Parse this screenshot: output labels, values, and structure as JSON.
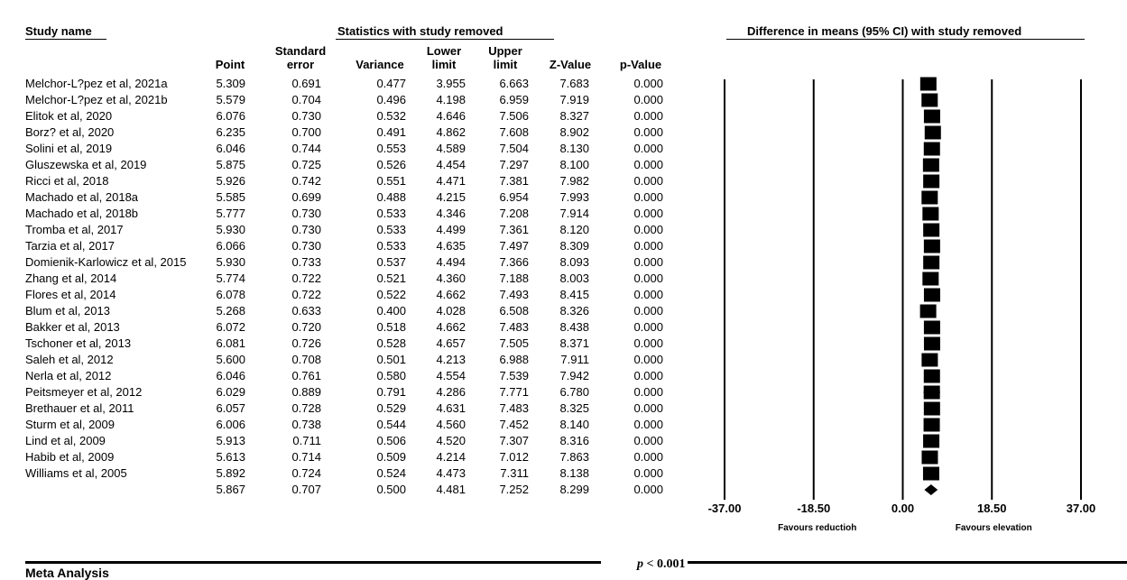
{
  "headers": {
    "study_name": "Study name",
    "stats_group": "Statistics with study removed",
    "plot_group": "Difference in means (95% CI) with study removed",
    "columns": [
      {
        "key": "point",
        "lines": [
          "",
          "Point"
        ]
      },
      {
        "key": "se",
        "lines": [
          "Standard",
          "error"
        ]
      },
      {
        "key": "variance",
        "lines": [
          "",
          "Variance"
        ]
      },
      {
        "key": "lower",
        "lines": [
          "Lower",
          "limit"
        ]
      },
      {
        "key": "upper",
        "lines": [
          "Upper",
          "limit"
        ]
      },
      {
        "key": "z",
        "lines": [
          "",
          "Z-Value"
        ]
      },
      {
        "key": "p",
        "lines": [
          "",
          "p-Value"
        ]
      }
    ]
  },
  "rows": [
    {
      "study": "Melchor-L?pez et al, 2021a",
      "point": "5.309",
      "se": "0.691",
      "variance": "0.477",
      "lower": "3.955",
      "upper": "6.663",
      "z": "7.683",
      "p": "0.000"
    },
    {
      "study": "Melchor-L?pez et al, 2021b",
      "point": "5.579",
      "se": "0.704",
      "variance": "0.496",
      "lower": "4.198",
      "upper": "6.959",
      "z": "7.919",
      "p": "0.000"
    },
    {
      "study": "Elitok et al, 2020",
      "point": "6.076",
      "se": "0.730",
      "variance": "0.532",
      "lower": "4.646",
      "upper": "7.506",
      "z": "8.327",
      "p": "0.000"
    },
    {
      "study": "Borz? et al, 2020",
      "point": "6.235",
      "se": "0.700",
      "variance": "0.491",
      "lower": "4.862",
      "upper": "7.608",
      "z": "8.902",
      "p": "0.000"
    },
    {
      "study": "Solini et al, 2019",
      "point": "6.046",
      "se": "0.744",
      "variance": "0.553",
      "lower": "4.589",
      "upper": "7.504",
      "z": "8.130",
      "p": "0.000"
    },
    {
      "study": "Gluszewska et al, 2019",
      "point": "5.875",
      "se": "0.725",
      "variance": "0.526",
      "lower": "4.454",
      "upper": "7.297",
      "z": "8.100",
      "p": "0.000"
    },
    {
      "study": "Ricci et al, 2018",
      "point": "5.926",
      "se": "0.742",
      "variance": "0.551",
      "lower": "4.471",
      "upper": "7.381",
      "z": "7.982",
      "p": "0.000"
    },
    {
      "study": "Machado et al, 2018a",
      "point": "5.585",
      "se": "0.699",
      "variance": "0.488",
      "lower": "4.215",
      "upper": "6.954",
      "z": "7.993",
      "p": "0.000"
    },
    {
      "study": "Machado et al, 2018b",
      "point": "5.777",
      "se": "0.730",
      "variance": "0.533",
      "lower": "4.346",
      "upper": "7.208",
      "z": "7.914",
      "p": "0.000"
    },
    {
      "study": "Tromba et al, 2017",
      "point": "5.930",
      "se": "0.730",
      "variance": "0.533",
      "lower": "4.499",
      "upper": "7.361",
      "z": "8.120",
      "p": "0.000"
    },
    {
      "study": "Tarzia et al, 2017",
      "point": "6.066",
      "se": "0.730",
      "variance": "0.533",
      "lower": "4.635",
      "upper": "7.497",
      "z": "8.309",
      "p": "0.000"
    },
    {
      "study": "Domienik-Karlowicz et al, 2015",
      "point": "5.930",
      "se": "0.733",
      "variance": "0.537",
      "lower": "4.494",
      "upper": "7.366",
      "z": "8.093",
      "p": "0.000"
    },
    {
      "study": "Zhang et al, 2014",
      "point": "5.774",
      "se": "0.722",
      "variance": "0.521",
      "lower": "4.360",
      "upper": "7.188",
      "z": "8.003",
      "p": "0.000"
    },
    {
      "study": "Flores et al, 2014",
      "point": "6.078",
      "se": "0.722",
      "variance": "0.522",
      "lower": "4.662",
      "upper": "7.493",
      "z": "8.415",
      "p": "0.000"
    },
    {
      "study": "Blum et al, 2013",
      "point": "5.268",
      "se": "0.633",
      "variance": "0.400",
      "lower": "4.028",
      "upper": "6.508",
      "z": "8.326",
      "p": "0.000"
    },
    {
      "study": "Bakker et al, 2013",
      "point": "6.072",
      "se": "0.720",
      "variance": "0.518",
      "lower": "4.662",
      "upper": "7.483",
      "z": "8.438",
      "p": "0.000"
    },
    {
      "study": "Tschoner et al, 2013",
      "point": "6.081",
      "se": "0.726",
      "variance": "0.528",
      "lower": "4.657",
      "upper": "7.505",
      "z": "8.371",
      "p": "0.000"
    },
    {
      "study": "Saleh et al, 2012",
      "point": "5.600",
      "se": "0.708",
      "variance": "0.501",
      "lower": "4.213",
      "upper": "6.988",
      "z": "7.911",
      "p": "0.000"
    },
    {
      "study": "Nerla et al, 2012",
      "point": "6.046",
      "se": "0.761",
      "variance": "0.580",
      "lower": "4.554",
      "upper": "7.539",
      "z": "7.942",
      "p": "0.000"
    },
    {
      "study": "Peitsmeyer et al, 2012",
      "point": "6.029",
      "se": "0.889",
      "variance": "0.791",
      "lower": "4.286",
      "upper": "7.771",
      "z": "6.780",
      "p": "0.000"
    },
    {
      "study": "Brethauer et al, 2011",
      "point": "6.057",
      "se": "0.728",
      "variance": "0.529",
      "lower": "4.631",
      "upper": "7.483",
      "z": "8.325",
      "p": "0.000"
    },
    {
      "study": "Sturm et al, 2009",
      "point": "6.006",
      "se": "0.738",
      "variance": "0.544",
      "lower": "4.560",
      "upper": "7.452",
      "z": "8.140",
      "p": "0.000"
    },
    {
      "study": "Lind et al, 2009",
      "point": "5.913",
      "se": "0.711",
      "variance": "0.506",
      "lower": "4.520",
      "upper": "7.307",
      "z": "8.316",
      "p": "0.000"
    },
    {
      "study": "Habib et al, 2009",
      "point": "5.613",
      "se": "0.714",
      "variance": "0.509",
      "lower": "4.214",
      "upper": "7.012",
      "z": "7.863",
      "p": "0.000"
    },
    {
      "study": "Williams et al, 2005",
      "point": "5.892",
      "se": "0.724",
      "variance": "0.524",
      "lower": "4.473",
      "upper": "7.311",
      "z": "8.138",
      "p": "0.000"
    }
  ],
  "summary": {
    "study": "",
    "point": "5.867",
    "se": "0.707",
    "variance": "0.500",
    "lower": "4.481",
    "upper": "7.252",
    "z": "8.299",
    "p": "0.000"
  },
  "chart_data": {
    "type": "forest",
    "xlim": [
      -37.0,
      37.0
    ],
    "x_ticks": [
      "-37.00",
      "-18.50",
      "0.00",
      "18.50",
      "37.00"
    ],
    "x_tick_values": [
      -37.0,
      -18.5,
      0.0,
      18.5,
      37.0
    ],
    "favours_left": "Favours reductioh",
    "favours_right": "Favours elevation",
    "marker": "square",
    "summary_marker": "diamond"
  },
  "footer": {
    "meta_title": "Meta Analysis",
    "p_symbol": "p",
    "p_text": " < 0.001"
  }
}
